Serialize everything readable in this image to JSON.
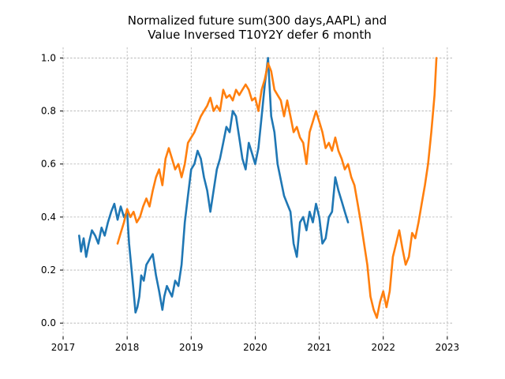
{
  "chart_data": {
    "type": "line",
    "title_line1": "Normalized future sum(300 days,AAPL) and",
    "title_line2": "Value Inversed T10Y2Y defer 6 month",
    "xlabel": "",
    "ylabel": "",
    "xlim": [
      2017.0,
      2023.1
    ],
    "ylim": [
      -0.05,
      1.04
    ],
    "x_ticks": [
      2017,
      2018,
      2019,
      2020,
      2021,
      2022,
      2023
    ],
    "x_tick_labels": [
      "2017",
      "2018",
      "2019",
      "2020",
      "2021",
      "2022",
      "2023"
    ],
    "y_ticks": [
      0.0,
      0.2,
      0.4,
      0.6,
      0.8,
      1.0
    ],
    "y_tick_labels": [
      "0.0",
      "0.2",
      "0.4",
      "0.6",
      "0.8",
      "1.0"
    ],
    "grid": true,
    "series": [
      {
        "color": "#1f77b4",
        "x": [
          2017.25,
          2017.28,
          2017.32,
          2017.36,
          2017.4,
          2017.45,
          2017.5,
          2017.55,
          2017.6,
          2017.65,
          2017.7,
          2017.75,
          2017.8,
          2017.85,
          2017.9,
          2017.95,
          2018.0,
          2018.03,
          2018.07,
          2018.1,
          2018.13,
          2018.16,
          2018.19,
          2018.22,
          2018.26,
          2018.3,
          2018.35,
          2018.4,
          2018.45,
          2018.5,
          2018.55,
          2018.58,
          2018.62,
          2018.66,
          2018.7,
          2018.75,
          2018.8,
          2018.85,
          2018.9,
          2018.95,
          2019.0,
          2019.05,
          2019.1,
          2019.15,
          2019.2,
          2019.25,
          2019.3,
          2019.35,
          2019.4,
          2019.45,
          2019.5,
          2019.55,
          2019.6,
          2019.65,
          2019.7,
          2019.75,
          2019.8,
          2019.85,
          2019.9,
          2019.95,
          2020.0,
          2020.05,
          2020.1,
          2020.15,
          2020.2,
          2020.25,
          2020.3,
          2020.35,
          2020.4,
          2020.45,
          2020.5,
          2020.55,
          2020.6,
          2020.65,
          2020.7,
          2020.75,
          2020.8,
          2020.85,
          2020.9,
          2020.95,
          2021.0,
          2021.05,
          2021.1,
          2021.15,
          2021.2,
          2021.25,
          2021.3,
          2021.35,
          2021.4,
          2021.45
        ],
        "y": [
          0.33,
          0.27,
          0.32,
          0.25,
          0.3,
          0.35,
          0.33,
          0.3,
          0.36,
          0.33,
          0.38,
          0.42,
          0.45,
          0.39,
          0.44,
          0.4,
          0.42,
          0.3,
          0.2,
          0.12,
          0.04,
          0.06,
          0.1,
          0.18,
          0.16,
          0.22,
          0.24,
          0.26,
          0.18,
          0.12,
          0.05,
          0.1,
          0.14,
          0.12,
          0.1,
          0.16,
          0.14,
          0.22,
          0.38,
          0.48,
          0.58,
          0.6,
          0.65,
          0.62,
          0.55,
          0.5,
          0.42,
          0.5,
          0.58,
          0.62,
          0.68,
          0.74,
          0.72,
          0.8,
          0.78,
          0.7,
          0.62,
          0.58,
          0.68,
          0.64,
          0.6,
          0.66,
          0.78,
          0.9,
          1.0,
          0.78,
          0.72,
          0.6,
          0.54,
          0.48,
          0.45,
          0.42,
          0.3,
          0.25,
          0.38,
          0.4,
          0.35,
          0.42,
          0.38,
          0.45,
          0.4,
          0.3,
          0.32,
          0.4,
          0.42,
          0.55,
          0.5,
          0.46,
          0.42,
          0.38
        ]
      },
      {
        "color": "#ff7f0e",
        "x": [
          2017.85,
          2017.9,
          2017.95,
          2018.0,
          2018.05,
          2018.1,
          2018.15,
          2018.2,
          2018.25,
          2018.3,
          2018.35,
          2018.4,
          2018.45,
          2018.5,
          2018.55,
          2018.6,
          2018.65,
          2018.7,
          2018.75,
          2018.8,
          2018.85,
          2018.9,
          2018.95,
          2019.0,
          2019.05,
          2019.1,
          2019.15,
          2019.2,
          2019.25,
          2019.3,
          2019.35,
          2019.4,
          2019.45,
          2019.5,
          2019.55,
          2019.6,
          2019.65,
          2019.7,
          2019.75,
          2019.8,
          2019.85,
          2019.9,
          2019.95,
          2020.0,
          2020.05,
          2020.1,
          2020.15,
          2020.2,
          2020.25,
          2020.3,
          2020.35,
          2020.4,
          2020.45,
          2020.5,
          2020.55,
          2020.6,
          2020.65,
          2020.7,
          2020.75,
          2020.8,
          2020.85,
          2020.9,
          2020.95,
          2021.0,
          2021.05,
          2021.1,
          2021.15,
          2021.2,
          2021.25,
          2021.3,
          2021.35,
          2021.4,
          2021.45,
          2021.5,
          2021.55,
          2021.6,
          2021.65,
          2021.7,
          2021.75,
          2021.8,
          2021.85,
          2021.9,
          2021.95,
          2022.0,
          2022.05,
          2022.1,
          2022.15,
          2022.2,
          2022.25,
          2022.3,
          2022.35,
          2022.4,
          2022.45,
          2022.5,
          2022.55,
          2022.6,
          2022.65,
          2022.7,
          2022.75,
          2022.8,
          2022.83
        ],
        "y": [
          0.3,
          0.34,
          0.38,
          0.43,
          0.4,
          0.42,
          0.38,
          0.4,
          0.44,
          0.47,
          0.44,
          0.5,
          0.55,
          0.58,
          0.52,
          0.62,
          0.66,
          0.62,
          0.58,
          0.6,
          0.55,
          0.6,
          0.68,
          0.7,
          0.72,
          0.75,
          0.78,
          0.8,
          0.82,
          0.85,
          0.8,
          0.82,
          0.8,
          0.88,
          0.85,
          0.86,
          0.84,
          0.88,
          0.86,
          0.88,
          0.9,
          0.88,
          0.84,
          0.85,
          0.8,
          0.88,
          0.92,
          0.98,
          0.95,
          0.88,
          0.86,
          0.84,
          0.78,
          0.84,
          0.78,
          0.72,
          0.74,
          0.7,
          0.68,
          0.6,
          0.72,
          0.76,
          0.8,
          0.76,
          0.72,
          0.66,
          0.68,
          0.65,
          0.7,
          0.65,
          0.62,
          0.58,
          0.6,
          0.55,
          0.52,
          0.45,
          0.38,
          0.3,
          0.22,
          0.1,
          0.05,
          0.02,
          0.08,
          0.12,
          0.06,
          0.12,
          0.25,
          0.3,
          0.35,
          0.28,
          0.22,
          0.25,
          0.34,
          0.32,
          0.38,
          0.45,
          0.52,
          0.6,
          0.72,
          0.86,
          1.0
        ]
      }
    ]
  }
}
